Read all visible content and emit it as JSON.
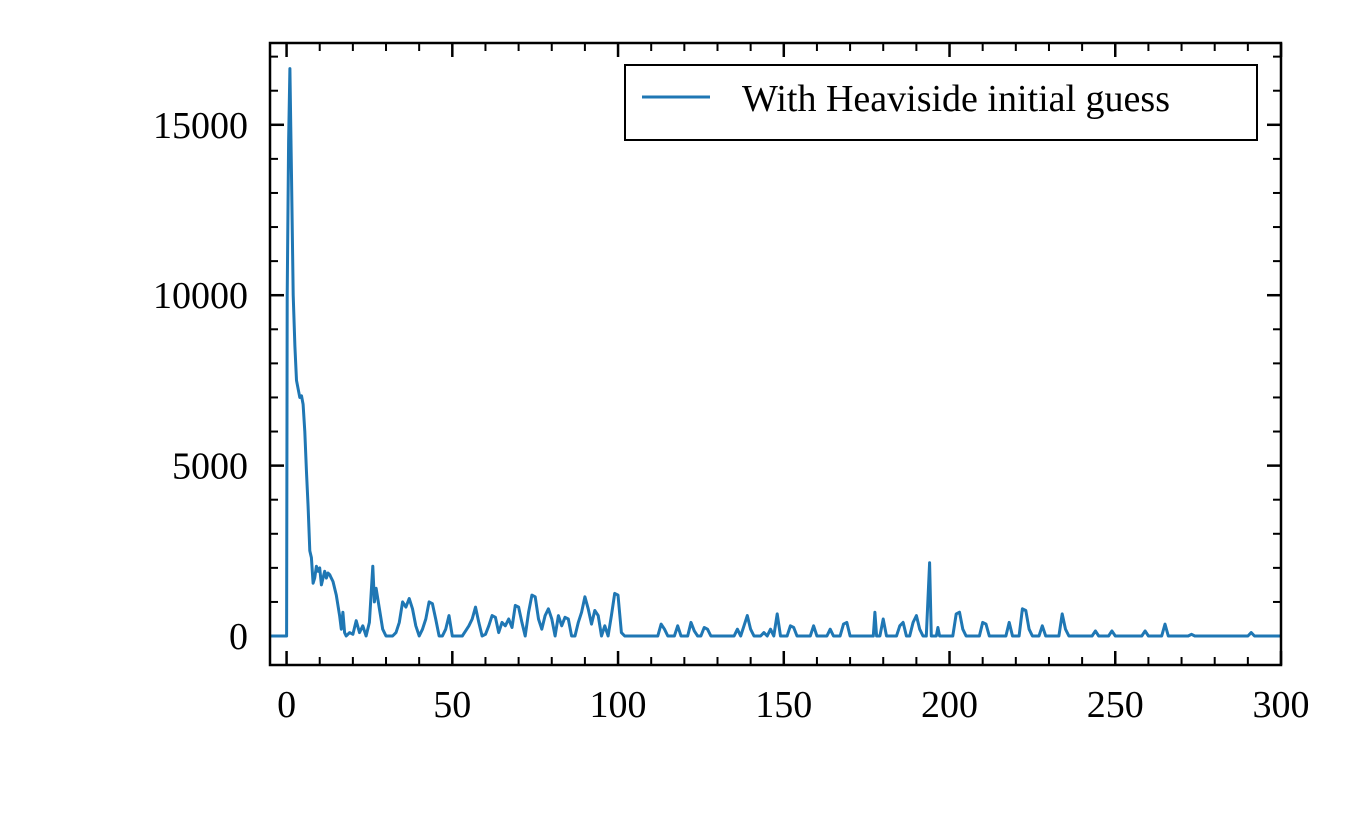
{
  "chart_data": {
    "type": "line",
    "title": "",
    "xlabel": "",
    "ylabel": "",
    "xlim": [
      -5,
      300
    ],
    "ylim": [
      -850,
      17400
    ],
    "grid": false,
    "legend": {
      "location": "top-right"
    },
    "xticks": [
      0,
      50,
      100,
      150,
      200,
      250,
      300
    ],
    "yticks": [
      0,
      5000,
      10000,
      15000
    ],
    "xtick_labels": [
      "0",
      "50",
      "100",
      "150",
      "200",
      "250",
      "300"
    ],
    "ytick_labels": [
      "0",
      "5000",
      "10000",
      "15000"
    ],
    "series": [
      {
        "name": "With Heaviside initial guess",
        "color": "#1f77b4",
        "points": [
          [
            -5,
            0
          ],
          [
            0,
            0
          ],
          [
            0.2,
            10000
          ],
          [
            0.6,
            14500
          ],
          [
            1,
            16650
          ],
          [
            1.5,
            13500
          ],
          [
            2,
            10000
          ],
          [
            2.5,
            8500
          ],
          [
            3,
            7500
          ],
          [
            4,
            7000
          ],
          [
            4.5,
            7050
          ],
          [
            5,
            6800
          ],
          [
            5.5,
            6000
          ],
          [
            6,
            4800
          ],
          [
            6.5,
            3800
          ],
          [
            7,
            2500
          ],
          [
            7.5,
            2300
          ],
          [
            8,
            1550
          ],
          [
            8.5,
            1700
          ],
          [
            9,
            2050
          ],
          [
            9.5,
            1900
          ],
          [
            10,
            2000
          ],
          [
            10.5,
            1500
          ],
          [
            11,
            1700
          ],
          [
            11.5,
            1900
          ],
          [
            12,
            1700
          ],
          [
            12.5,
            1850
          ],
          [
            13,
            1800
          ],
          [
            13.5,
            1700
          ],
          [
            14,
            1600
          ],
          [
            15,
            1200
          ],
          [
            16,
            600
          ],
          [
            16.5,
            200
          ],
          [
            17,
            700
          ],
          [
            17.5,
            100
          ],
          [
            18,
            0
          ],
          [
            19,
            100
          ],
          [
            20,
            50
          ],
          [
            21,
            450
          ],
          [
            22,
            100
          ],
          [
            23,
            300
          ],
          [
            24,
            0
          ],
          [
            25,
            400
          ],
          [
            26,
            2050
          ],
          [
            26.5,
            1000
          ],
          [
            27,
            1400
          ],
          [
            28,
            800
          ],
          [
            29,
            200
          ],
          [
            30,
            0
          ],
          [
            32,
            0
          ],
          [
            33,
            100
          ],
          [
            34,
            400
          ],
          [
            35,
            1000
          ],
          [
            36,
            850
          ],
          [
            37,
            1100
          ],
          [
            38,
            800
          ],
          [
            39,
            300
          ],
          [
            40,
            0
          ],
          [
            41,
            200
          ],
          [
            42,
            500
          ],
          [
            43,
            1000
          ],
          [
            44,
            950
          ],
          [
            45,
            500
          ],
          [
            46,
            0
          ],
          [
            47,
            0
          ],
          [
            48,
            200
          ],
          [
            49,
            600
          ],
          [
            50,
            0
          ],
          [
            53,
            0
          ],
          [
            54,
            150
          ],
          [
            55,
            300
          ],
          [
            56,
            500
          ],
          [
            57,
            850
          ],
          [
            58,
            400
          ],
          [
            59,
            0
          ],
          [
            60,
            50
          ],
          [
            61,
            300
          ],
          [
            62,
            600
          ],
          [
            63,
            550
          ],
          [
            64,
            100
          ],
          [
            65,
            400
          ],
          [
            66,
            300
          ],
          [
            67,
            500
          ],
          [
            68,
            250
          ],
          [
            69,
            900
          ],
          [
            70,
            850
          ],
          [
            71,
            400
          ],
          [
            72,
            0
          ],
          [
            73,
            700
          ],
          [
            74,
            1200
          ],
          [
            75,
            1150
          ],
          [
            76,
            500
          ],
          [
            77,
            200
          ],
          [
            78,
            600
          ],
          [
            79,
            800
          ],
          [
            80,
            500
          ],
          [
            81,
            0
          ],
          [
            82,
            600
          ],
          [
            83,
            300
          ],
          [
            84,
            550
          ],
          [
            85,
            500
          ],
          [
            86,
            0
          ],
          [
            87,
            0
          ],
          [
            88,
            400
          ],
          [
            89,
            700
          ],
          [
            90,
            1150
          ],
          [
            91,
            800
          ],
          [
            92,
            350
          ],
          [
            93,
            750
          ],
          [
            94,
            600
          ],
          [
            95,
            0
          ],
          [
            96,
            300
          ],
          [
            97,
            0
          ],
          [
            98,
            600
          ],
          [
            99,
            1250
          ],
          [
            100,
            1200
          ],
          [
            101,
            100
          ],
          [
            102,
            0
          ],
          [
            112,
            0
          ],
          [
            113,
            350
          ],
          [
            114,
            200
          ],
          [
            115,
            0
          ],
          [
            117,
            0
          ],
          [
            118,
            300
          ],
          [
            119,
            0
          ],
          [
            121,
            0
          ],
          [
            122,
            400
          ],
          [
            123,
            150
          ],
          [
            124,
            0
          ],
          [
            125,
            0
          ],
          [
            126,
            250
          ],
          [
            127,
            200
          ],
          [
            128,
            0
          ],
          [
            135,
            0
          ],
          [
            136,
            200
          ],
          [
            137,
            0
          ],
          [
            138,
            300
          ],
          [
            139,
            600
          ],
          [
            140,
            200
          ],
          [
            141,
            0
          ],
          [
            143,
            0
          ],
          [
            144,
            100
          ],
          [
            145,
            0
          ],
          [
            146,
            200
          ],
          [
            147,
            0
          ],
          [
            148,
            650
          ],
          [
            149,
            0
          ],
          [
            151,
            0
          ],
          [
            152,
            300
          ],
          [
            153,
            250
          ],
          [
            154,
            0
          ],
          [
            158,
            0
          ],
          [
            159,
            300
          ],
          [
            160,
            0
          ],
          [
            163,
            0
          ],
          [
            164,
            200
          ],
          [
            165,
            0
          ],
          [
            167,
            0
          ],
          [
            168,
            350
          ],
          [
            169,
            400
          ],
          [
            170,
            0
          ],
          [
            177,
            0
          ],
          [
            177.5,
            700
          ],
          [
            178,
            0
          ],
          [
            179,
            0
          ],
          [
            180,
            500
          ],
          [
            181,
            0
          ],
          [
            184,
            0
          ],
          [
            185,
            300
          ],
          [
            186,
            400
          ],
          [
            187,
            0
          ],
          [
            188,
            0
          ],
          [
            189,
            400
          ],
          [
            190,
            600
          ],
          [
            191,
            200
          ],
          [
            192,
            0
          ],
          [
            193,
            0
          ],
          [
            194,
            2150
          ],
          [
            194.5,
            0
          ],
          [
            196,
            0
          ],
          [
            196.5,
            250
          ],
          [
            197,
            0
          ],
          [
            201,
            0
          ],
          [
            202,
            650
          ],
          [
            203,
            700
          ],
          [
            204,
            200
          ],
          [
            205,
            0
          ],
          [
            209,
            0
          ],
          [
            210,
            400
          ],
          [
            211,
            350
          ],
          [
            212,
            0
          ],
          [
            217,
            0
          ],
          [
            218,
            400
          ],
          [
            219,
            0
          ],
          [
            221,
            0
          ],
          [
            222,
            800
          ],
          [
            223,
            750
          ],
          [
            224,
            200
          ],
          [
            225,
            0
          ],
          [
            227,
            0
          ],
          [
            228,
            300
          ],
          [
            229,
            0
          ],
          [
            233,
            0
          ],
          [
            234,
            650
          ],
          [
            235,
            200
          ],
          [
            236,
            0
          ],
          [
            243,
            0
          ],
          [
            244,
            150
          ],
          [
            245,
            0
          ],
          [
            248,
            0
          ],
          [
            249,
            150
          ],
          [
            250,
            0
          ],
          [
            258,
            0
          ],
          [
            259,
            150
          ],
          [
            260,
            0
          ],
          [
            264,
            0
          ],
          [
            265,
            350
          ],
          [
            266,
            0
          ],
          [
            272,
            0
          ],
          [
            273,
            50
          ],
          [
            274,
            0
          ],
          [
            290,
            0
          ],
          [
            291,
            100
          ],
          [
            292,
            0
          ],
          [
            300,
            0
          ]
        ]
      }
    ]
  }
}
